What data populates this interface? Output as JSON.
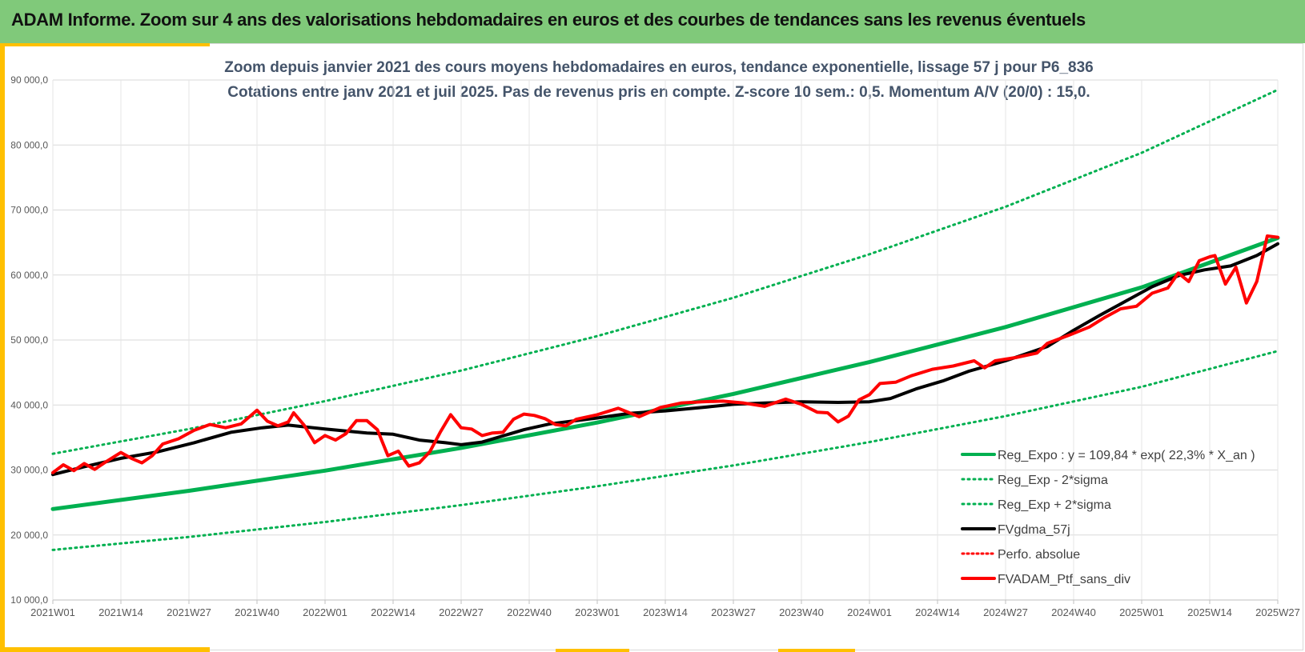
{
  "header": {
    "title": "ADAM Informe. Zoom sur 4 ans des valorisations hebdomadaires en euros et des courbes de tendances sans les revenus éventuels"
  },
  "colors": {
    "banner": "#80c97a",
    "accent": "#ffc000",
    "trend": "#00b050",
    "smoothed": "#000000",
    "portfolio": "#ff0000",
    "subtitle": "#44546a"
  },
  "chart_data": {
    "type": "line",
    "title_line1": "Zoom depuis janvier 2021 des cours moyens hebdomadaires en euros, tendance exponentielle, lissage 57 j pour P6_836",
    "title_line2": "Cotations entre janv 2021 et juil 2025. Pas de revenus pris en compte. Z-score 10 sem.: 0,5. Momentum A/V (20/0) : 15,0.",
    "ylim": [
      10000,
      90000
    ],
    "y_ticks": [
      "10 000,0",
      "20 000,0",
      "30 000,0",
      "40 000,0",
      "50 000,0",
      "60 000,0",
      "70 000,0",
      "80 000,0",
      "90 000,0"
    ],
    "x_ticks": [
      "2021W01",
      "2021W14",
      "2021W27",
      "2021W40",
      "2022W01",
      "2022W14",
      "2022W27",
      "2022W40",
      "2023W01",
      "2023W14",
      "2023W27",
      "2023W40",
      "2024W01",
      "2024W14",
      "2024W27",
      "2024W40",
      "2025W01",
      "2025W14",
      "2025W27"
    ],
    "grid": true,
    "legend_position": "bottom-right",
    "series": [
      {
        "name": "Reg_Expo : y = 109,84 * exp( 22,3% *  X_an )",
        "style": "solid",
        "x": [
          0,
          26,
          52,
          78,
          104,
          130,
          156,
          182,
          208,
          234
        ],
        "y": [
          24000,
          26800,
          29900,
          33400,
          37300,
          41700,
          46600,
          52000,
          58100,
          65700
        ]
      },
      {
        "name": "Reg_Exp - 2*sigma",
        "style": "dotted",
        "x": [
          0,
          26,
          52,
          78,
          104,
          130,
          156,
          182,
          208,
          234
        ],
        "y": [
          17700,
          19700,
          22000,
          24600,
          27500,
          30700,
          34300,
          38300,
          42800,
          48300
        ]
      },
      {
        "name": "Reg_Exp + 2*sigma",
        "style": "dotted",
        "x": [
          0,
          26,
          52,
          78,
          104,
          130,
          156,
          182,
          208,
          234
        ],
        "y": [
          32500,
          36300,
          40600,
          45300,
          50600,
          56500,
          63200,
          70500,
          78800,
          88500
        ]
      },
      {
        "name": "FVgdma_57j",
        "style": "solid",
        "x": [
          0,
          6,
          13,
          20,
          27,
          34,
          40,
          45,
          52,
          60,
          65,
          70,
          75,
          78,
          82,
          90,
          95,
          104,
          110,
          117,
          125,
          130,
          136,
          143,
          150,
          156,
          160,
          165,
          170,
          175,
          182,
          190,
          195,
          200,
          205,
          210,
          215,
          220,
          225,
          230,
          234
        ],
        "y": [
          29300,
          30500,
          31800,
          32800,
          34200,
          35800,
          36500,
          36900,
          36300,
          35700,
          35500,
          34600,
          34200,
          33900,
          34300,
          36200,
          37100,
          38000,
          38700,
          39100,
          39700,
          40100,
          40300,
          40500,
          40400,
          40500,
          41000,
          42500,
          43700,
          45200,
          46800,
          49000,
          51500,
          53800,
          56000,
          58200,
          59900,
          60800,
          61400,
          63000,
          64800
        ]
      },
      {
        "name": "Perfo. absolue",
        "style": "dotted",
        "x": [],
        "y": []
      },
      {
        "name": "FVADAM_Ptf_sans_div",
        "style": "solid",
        "x": [
          0,
          2,
          4,
          6,
          8,
          10,
          13,
          15,
          17,
          19,
          21,
          24,
          27,
          30,
          33,
          36,
          39,
          41,
          43,
          45,
          46,
          48,
          50,
          52,
          54,
          56,
          58,
          60,
          62,
          64,
          66,
          68,
          70,
          72,
          74,
          76,
          78,
          80,
          82,
          84,
          86,
          88,
          90,
          92,
          94,
          96,
          98,
          100,
          104,
          108,
          112,
          116,
          120,
          124,
          128,
          132,
          136,
          140,
          143,
          146,
          148,
          150,
          152,
          154,
          156,
          158,
          161,
          164,
          168,
          172,
          176,
          178,
          180,
          184,
          188,
          190,
          194,
          198,
          201,
          204,
          207,
          210,
          213,
          215,
          217,
          219,
          221,
          222,
          224,
          226,
          228,
          230,
          232,
          234
        ],
        "y": [
          29600,
          30800,
          29900,
          31000,
          30100,
          31200,
          32700,
          31800,
          31100,
          32200,
          34000,
          34800,
          36100,
          37000,
          36500,
          37100,
          39200,
          37500,
          36800,
          37400,
          38800,
          36900,
          34200,
          35300,
          34600,
          35600,
          37600,
          37600,
          36200,
          32200,
          32900,
          30600,
          31100,
          32800,
          35800,
          38500,
          36500,
          36300,
          35300,
          35700,
          35800,
          37800,
          38600,
          38400,
          37900,
          37000,
          36800,
          37800,
          38500,
          39500,
          38200,
          39600,
          40300,
          40500,
          40600,
          40300,
          39800,
          40900,
          40100,
          38900,
          38800,
          37400,
          38300,
          40800,
          41600,
          43300,
          43500,
          44500,
          45500,
          46000,
          46800,
          45700,
          46800,
          47300,
          48000,
          49500,
          50700,
          52000,
          53500,
          54800,
          55200,
          57200,
          58000,
          60300,
          59000,
          62200,
          62800,
          63000,
          58600,
          61200,
          55700,
          59000,
          66000,
          65800
        ]
      }
    ]
  }
}
